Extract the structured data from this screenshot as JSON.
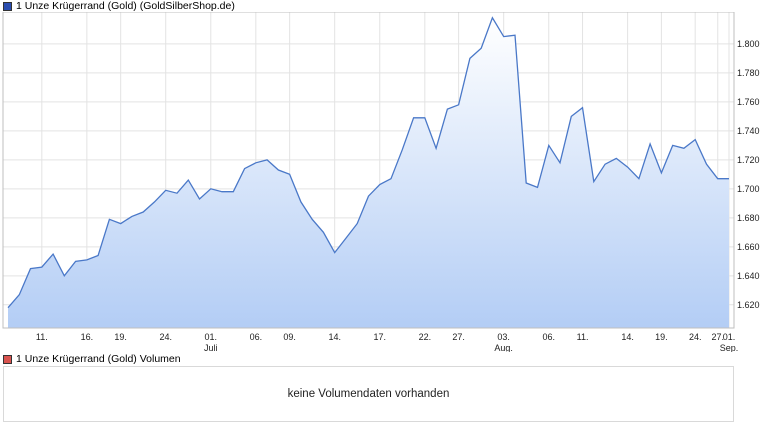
{
  "legend_price": {
    "label": "1 Unze Krügerrand (Gold) (GoldSilberShop.de)",
    "color": "#2a4db0"
  },
  "legend_volume": {
    "label": "1 Unze Krügerrand (Gold) Volumen",
    "color": "#d9534f"
  },
  "volume_message": "keine Volumendaten vorhanden",
  "chart_data": {
    "type": "area",
    "series": [
      {
        "values": [
          1618,
          1627,
          1645,
          1646,
          1655,
          1640,
          1650,
          1651,
          1654,
          1679,
          1676,
          1681,
          1684,
          1691,
          1699,
          1697,
          1706,
          1693,
          1700,
          1698,
          1698,
          1714,
          1718,
          1720,
          1713,
          1710,
          1691,
          1679,
          1670,
          1656,
          1666,
          1676,
          1695,
          1703,
          1707,
          1727,
          1749,
          1749,
          1728,
          1755,
          1758,
          1790,
          1797,
          1818,
          1805,
          1806,
          1704,
          1701,
          1730,
          1718,
          1750,
          1756,
          1705,
          1717,
          1721,
          1715,
          1707,
          1731,
          1711,
          1730,
          1728,
          1734,
          1717,
          1707,
          1707
        ]
      }
    ],
    "ylim": [
      1604,
      1822
    ],
    "yticks": [
      1620,
      1640,
      1660,
      1680,
      1700,
      1720,
      1740,
      1760,
      1780,
      1800
    ],
    "ytick_labels": [
      "1.620",
      "1.640",
      "1.660",
      "1.680",
      "1.700",
      "1.720",
      "1.740",
      "1.760",
      "1.780",
      "1.800"
    ],
    "xticks": [
      {
        "index": 3,
        "label": "11."
      },
      {
        "index": 7,
        "label": "16."
      },
      {
        "index": 10,
        "label": "19."
      },
      {
        "index": 14,
        "label": "24."
      },
      {
        "index": 18,
        "label": "01.",
        "sub": "Juli"
      },
      {
        "index": 22,
        "label": "06."
      },
      {
        "index": 25,
        "label": "09."
      },
      {
        "index": 29,
        "label": "14."
      },
      {
        "index": 33,
        "label": "17."
      },
      {
        "index": 37,
        "label": "22."
      },
      {
        "index": 40,
        "label": "27."
      },
      {
        "index": 44,
        "label": "03.",
        "sub": "Aug."
      },
      {
        "index": 48,
        "label": "06."
      },
      {
        "index": 51,
        "label": "11."
      },
      {
        "index": 55,
        "label": "14."
      },
      {
        "index": 58,
        "label": "19."
      },
      {
        "index": 61,
        "label": "24."
      },
      {
        "index": 63,
        "label": "27."
      },
      {
        "index": 64,
        "label": "01.",
        "sub": "Sep."
      }
    ],
    "grid": true,
    "line_color": "#4a78c8"
  }
}
